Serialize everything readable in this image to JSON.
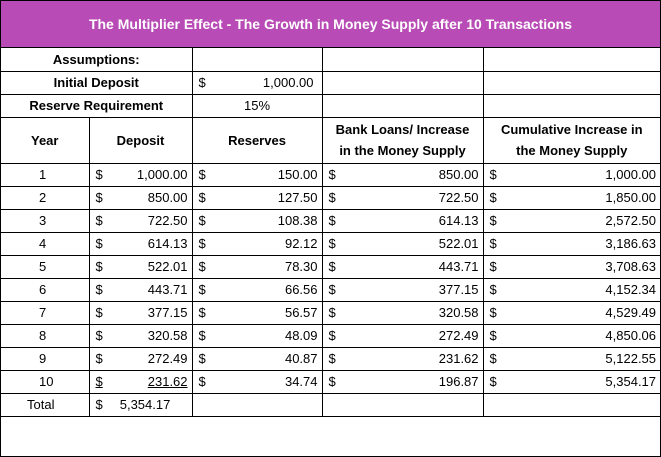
{
  "title": "The Multiplier Effect - The Growth in Money Supply after 10 Transactions",
  "currency": "$",
  "assumptions": {
    "heading": "Assumptions:",
    "initial_deposit_label": "Initial Deposit",
    "initial_deposit_value": "1,000.00",
    "reserve_requirement_label": "Reserve Requirement",
    "reserve_requirement_value": "15%"
  },
  "headers": {
    "year": "Year",
    "deposit": "Deposit",
    "reserves": "Reserves",
    "loans_line1": "Bank Loans/ Increase",
    "loans_line2": "in the Money Supply",
    "cumulative_line1": "Cumulative Increase in",
    "cumulative_line2": "the Money Supply"
  },
  "rows": [
    {
      "year": "1",
      "deposit": "1,000.00",
      "reserves": "150.00",
      "loans": "850.00",
      "cumulative": "1,000.00"
    },
    {
      "year": "2",
      "deposit": "850.00",
      "reserves": "127.50",
      "loans": "722.50",
      "cumulative": "1,850.00"
    },
    {
      "year": "3",
      "deposit": "722.50",
      "reserves": "108.38",
      "loans": "614.13",
      "cumulative": "2,572.50"
    },
    {
      "year": "4",
      "deposit": "614.13",
      "reserves": "92.12",
      "loans": "522.01",
      "cumulative": "3,186.63"
    },
    {
      "year": "5",
      "deposit": "522.01",
      "reserves": "78.30",
      "loans": "443.71",
      "cumulative": "3,708.63"
    },
    {
      "year": "6",
      "deposit": "443.71",
      "reserves": "66.56",
      "loans": "377.15",
      "cumulative": "4,152.34"
    },
    {
      "year": "7",
      "deposit": "377.15",
      "reserves": "56.57",
      "loans": "320.58",
      "cumulative": "4,529.49"
    },
    {
      "year": "8",
      "deposit": "320.58",
      "reserves": "48.09",
      "loans": "272.49",
      "cumulative": "4,850.06"
    },
    {
      "year": "9",
      "deposit": "272.49",
      "reserves": "40.87",
      "loans": "231.62",
      "cumulative": "5,122.55"
    },
    {
      "year": "10",
      "deposit": "231.62",
      "reserves": "34.74",
      "loans": "196.87",
      "cumulative": "5,354.17"
    }
  ],
  "total": {
    "label": "Total",
    "deposit": "5,354.17"
  }
}
